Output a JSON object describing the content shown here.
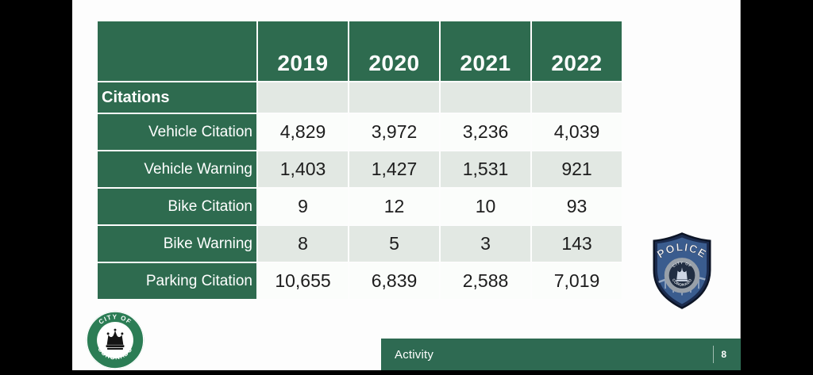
{
  "slide": {
    "table": {
      "years": [
        "2019",
        "2020",
        "2021",
        "2022"
      ],
      "section": {
        "label": "Citations"
      },
      "rows": [
        {
          "label": "Vehicle Citation",
          "values": [
            "4,829",
            "3,972",
            "3,236",
            "4,039"
          ]
        },
        {
          "label": "Vehicle Warning",
          "values": [
            "1,403",
            "1,427",
            "1,531",
            "921"
          ]
        },
        {
          "label": "Bike Citation",
          "values": [
            "9",
            "12",
            "10",
            "93"
          ]
        },
        {
          "label": "Bike Warning",
          "values": [
            "8",
            "5",
            "3",
            "143"
          ]
        },
        {
          "label": "Parking Citation",
          "values": [
            "10,655",
            "6,839",
            "2,588",
            "7,019"
          ]
        }
      ]
    },
    "police_badge": {
      "title": "POLICE",
      "seal_top": "CITY OF",
      "seal_bottom": "CORONADO"
    },
    "city_seal": {
      "arc_top": "CITY OF",
      "arc_bottom": "CORONADO"
    },
    "footer": {
      "label": "Activity",
      "page_number": "8"
    }
  },
  "colors": {
    "table_green": "#2e6b4f",
    "row_shaded": "#e2e8e3",
    "row_plain": "#fbfdfb",
    "footer_green": "#2e6a52",
    "badge_navy": "#1b2b4d",
    "badge_blue": "#3a5c8e",
    "seal_green": "#2c7d55"
  },
  "chart_data": {
    "type": "table",
    "title": "Citations",
    "columns": [
      "",
      "2019",
      "2020",
      "2021",
      "2022"
    ],
    "rows": [
      [
        "Vehicle Citation",
        4829,
        3972,
        3236,
        4039
      ],
      [
        "Vehicle Warning",
        1403,
        1427,
        1531,
        921
      ],
      [
        "Bike Citation",
        9,
        12,
        10,
        93
      ],
      [
        "Bike Warning",
        8,
        5,
        3,
        143
      ],
      [
        "Parking Citation",
        10655,
        6839,
        2588,
        7019
      ]
    ]
  }
}
